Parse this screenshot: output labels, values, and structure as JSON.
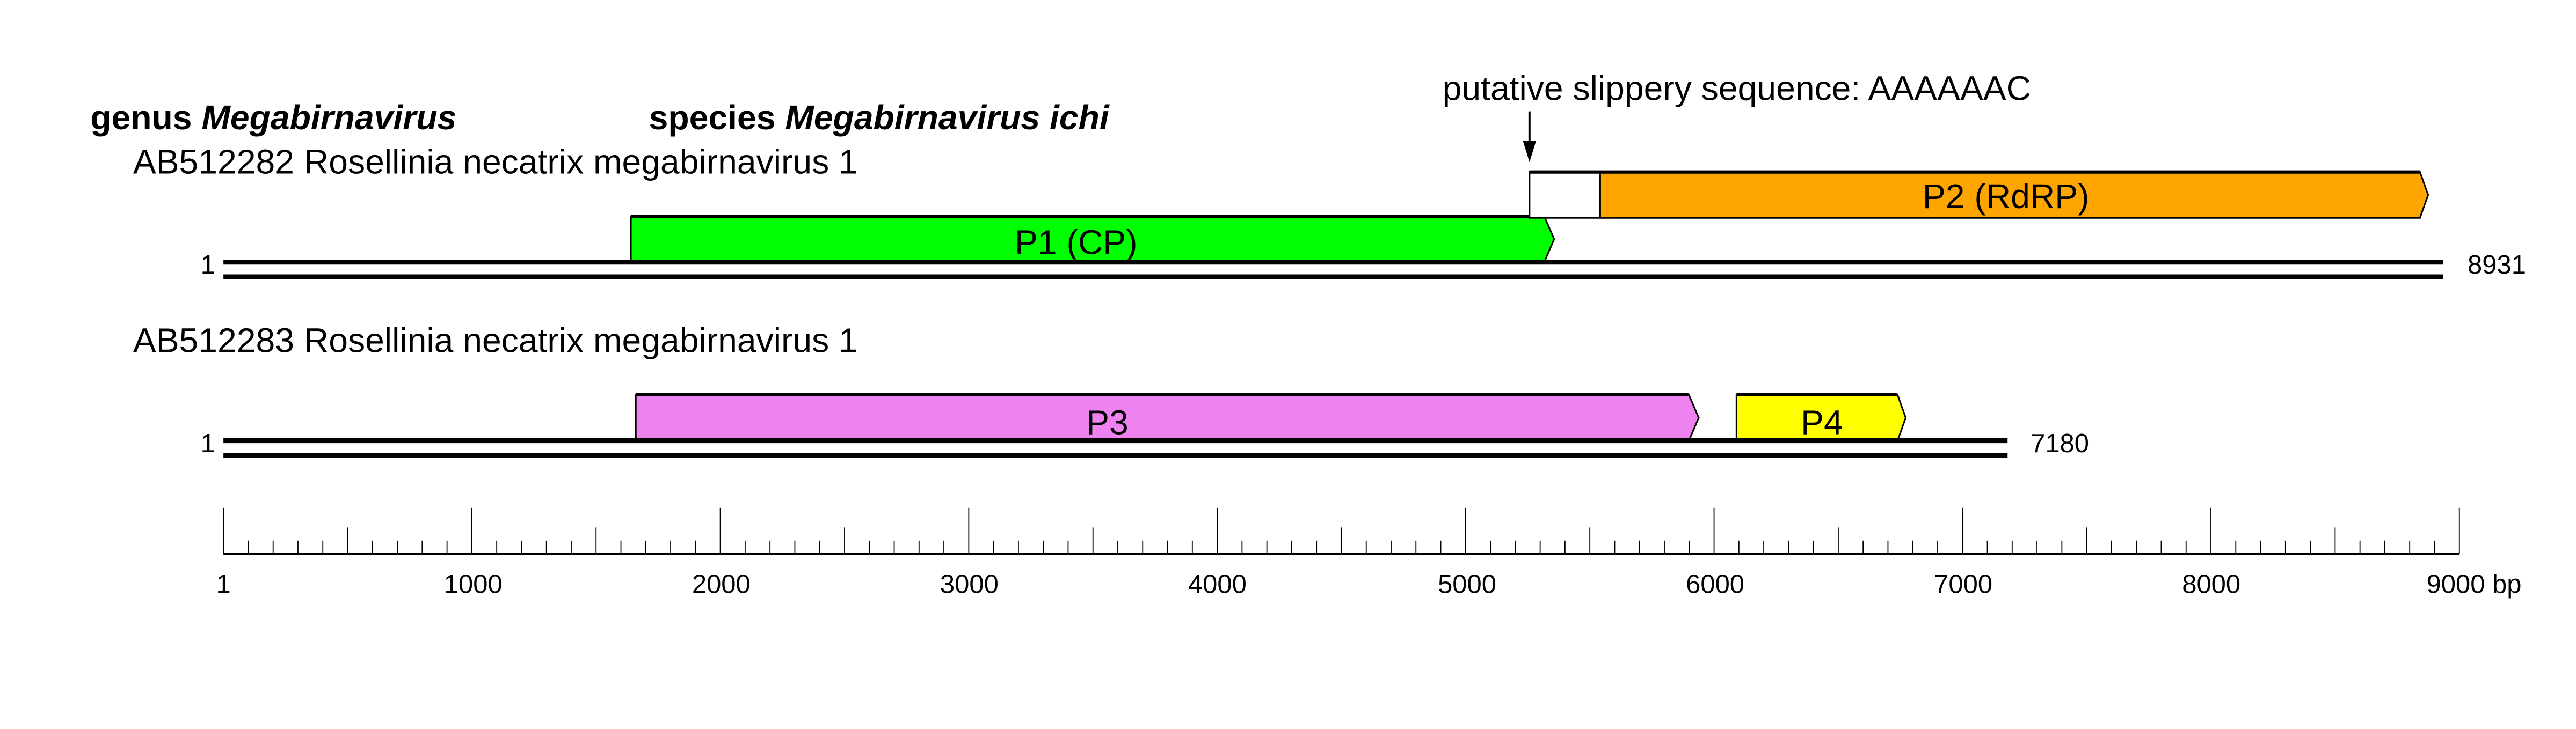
{
  "header": {
    "genus_prefix": "genus",
    "genus_name": "Megabirnavirus",
    "species_prefix": "species",
    "species_name": "Megabirnavirus ichi"
  },
  "annotation": {
    "slippery_label": "putative slippery sequence: AAAAAAC"
  },
  "genomes": [
    {
      "title": "AB512282 Rosellinia necatrix megabirnavirus 1",
      "start_label": "1",
      "end_label": "8931",
      "length": 8931,
      "orfs": [
        {
          "label": "P1 (CP)",
          "start": 1640,
          "end": 5380,
          "color": "#00FF00"
        },
        {
          "label": "",
          "start": 5270,
          "end": 5550,
          "color": "#FFFFFF",
          "note": "frameshift region"
        },
        {
          "label": "P2 (RdRP)",
          "start": 5550,
          "end": 8880,
          "color": "#FFA500"
        }
      ]
    },
    {
      "title": "AB512283 Rosellinia necatrix megabirnavirus 1",
      "start_label": "1",
      "end_label": "7180",
      "length": 7180,
      "orfs": [
        {
          "label": "P3",
          "start": 1660,
          "end": 5950,
          "color": "#EE82EE"
        },
        {
          "label": "P4",
          "start": 6100,
          "end": 6780,
          "color": "#FFFF00"
        }
      ]
    }
  ],
  "ruler": {
    "labels": [
      "1",
      "1000",
      "2000",
      "3000",
      "4000",
      "5000",
      "6000",
      "7000",
      "8000",
      "9000 bp"
    ],
    "max": 9000,
    "minor_step": 100,
    "mid_step": 500,
    "major_step": 1000
  }
}
